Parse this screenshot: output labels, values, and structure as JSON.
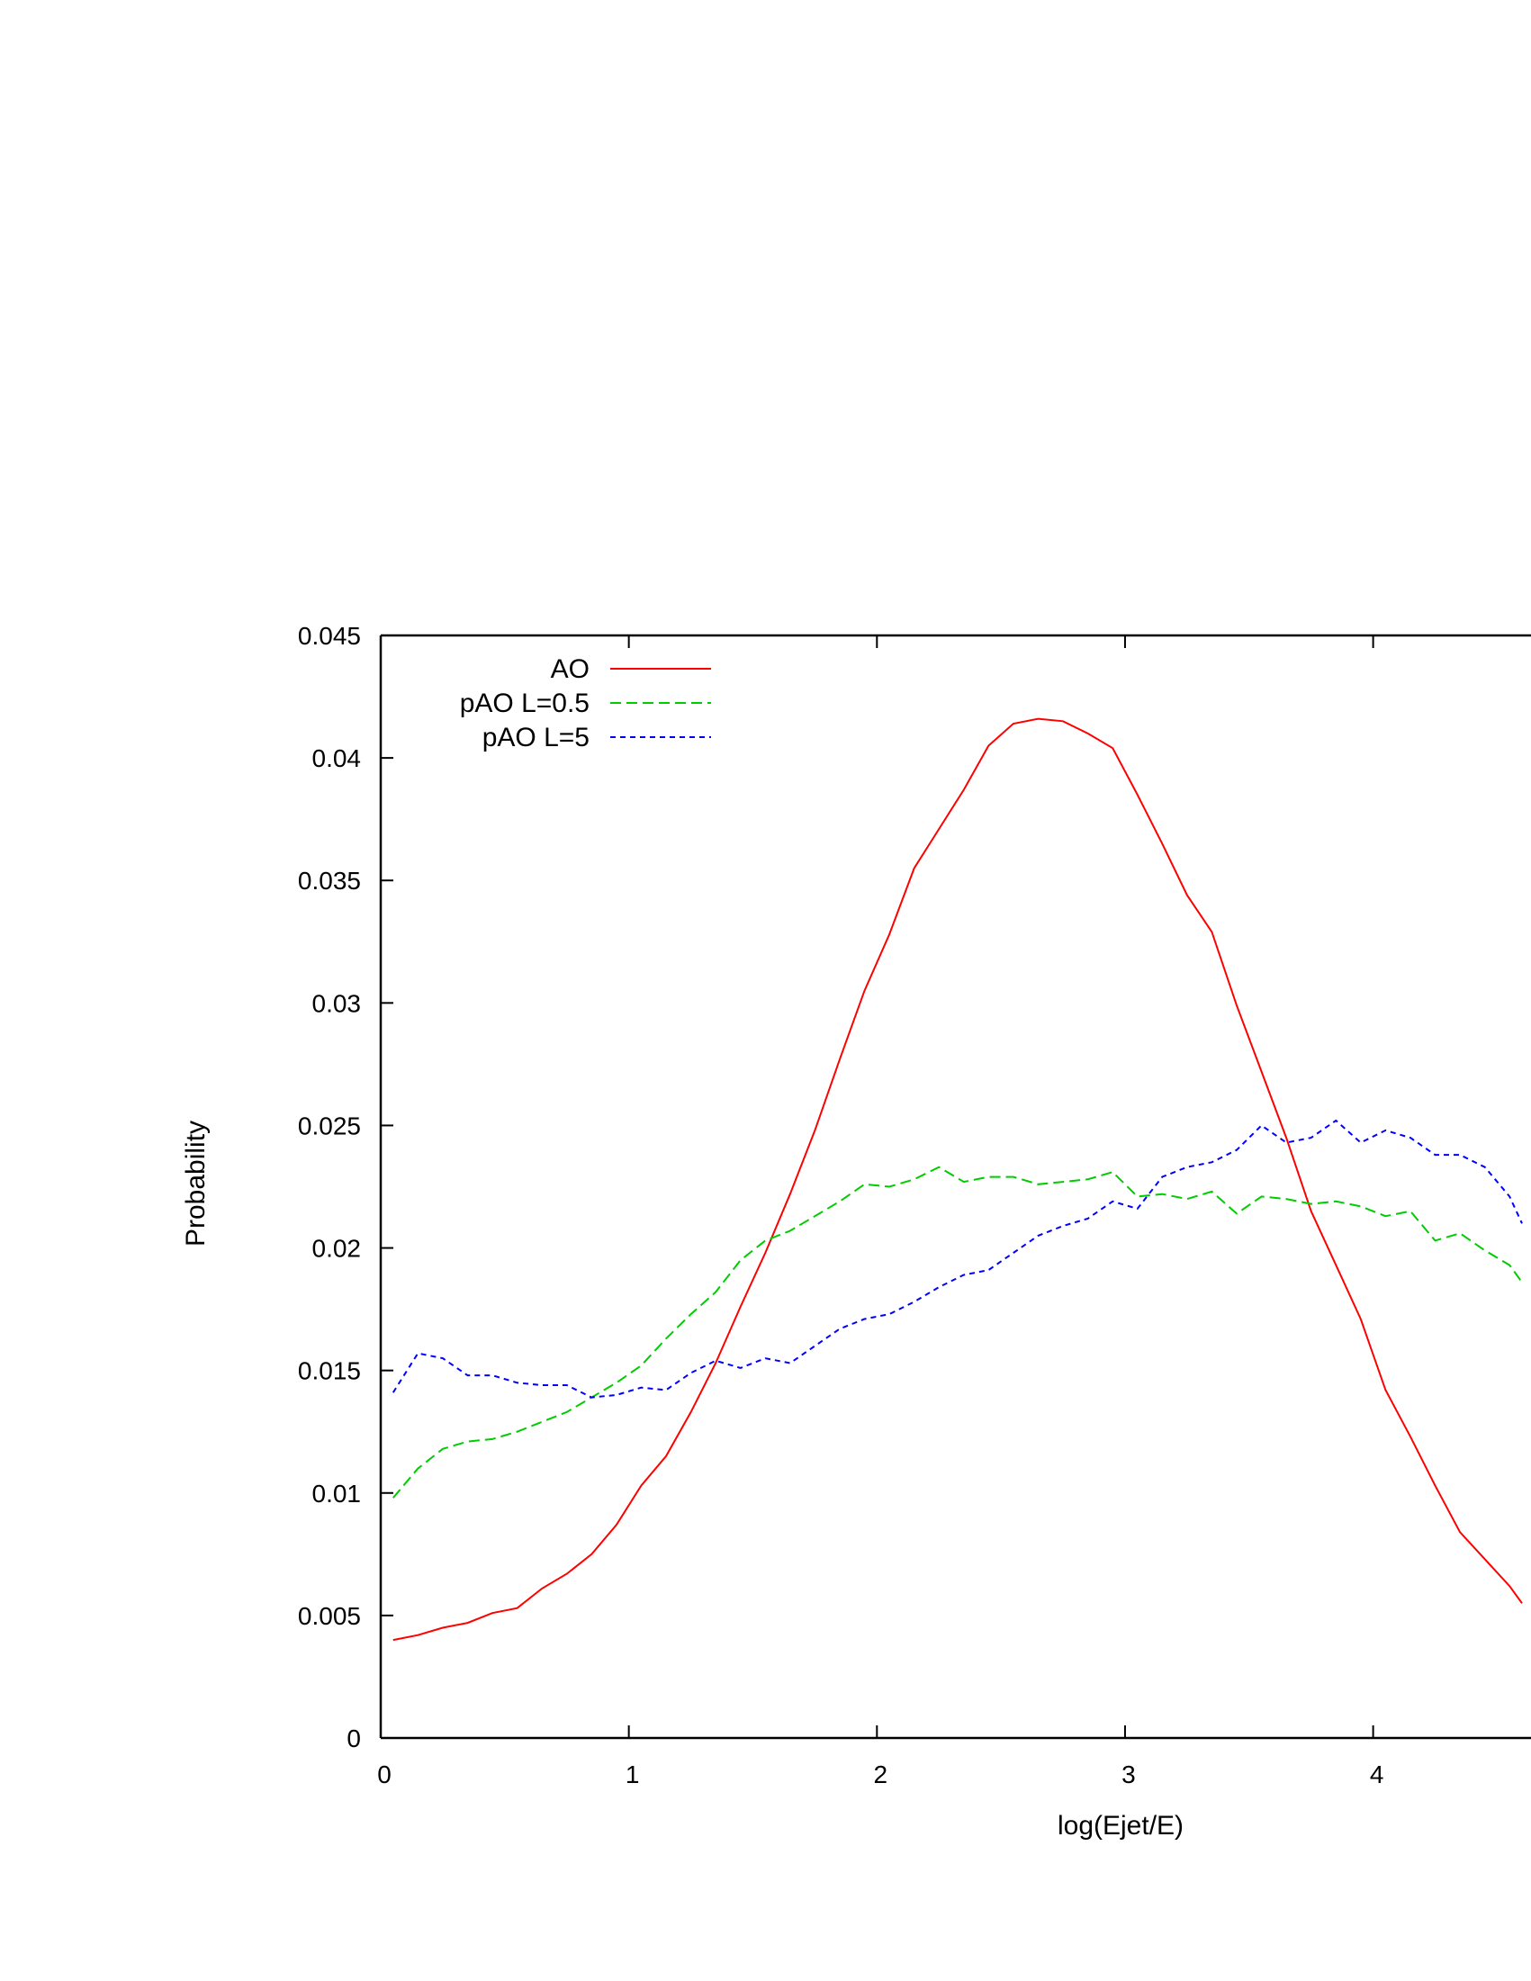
{
  "chart_data": {
    "type": "line",
    "title": "",
    "xlabel": "log(Ejet/E)",
    "ylabel": "Probability",
    "xlim": [
      0,
      4.6
    ],
    "ylim": [
      0,
      0.045
    ],
    "xticks": [
      0,
      1,
      2,
      3,
      4
    ],
    "xtick_labels": [
      "0",
      "1",
      "2",
      "3",
      "4"
    ],
    "yticks": [
      0,
      0.005,
      0.01,
      0.015,
      0.02,
      0.025,
      0.03,
      0.035,
      0.04,
      0.045
    ],
    "ytick_labels": [
      "0",
      "0.005",
      "0.01",
      "0.015",
      "0.02",
      "0.025",
      "0.03",
      "0.035",
      "0.04",
      "0.045"
    ],
    "grid": false,
    "legend_position": "top-left",
    "series": [
      {
        "name": "AO",
        "color": "#ff0000",
        "dash": "solid",
        "x": [
          0.05,
          0.15,
          0.25,
          0.35,
          0.45,
          0.55,
          0.65,
          0.75,
          0.85,
          0.95,
          1.05,
          1.15,
          1.25,
          1.35,
          1.45,
          1.55,
          1.65,
          1.75,
          1.85,
          1.95,
          2.05,
          2.15,
          2.25,
          2.35,
          2.45,
          2.55,
          2.65,
          2.75,
          2.85,
          2.95,
          3.05,
          3.15,
          3.25,
          3.35,
          3.45,
          3.55,
          3.65,
          3.75,
          3.85,
          3.95,
          4.05,
          4.15,
          4.25,
          4.35,
          4.45,
          4.55,
          4.6
        ],
        "y": [
          0.004,
          0.0042,
          0.0045,
          0.0047,
          0.0051,
          0.0053,
          0.0061,
          0.0067,
          0.0075,
          0.0087,
          0.0103,
          0.0115,
          0.0133,
          0.0153,
          0.0176,
          0.0198,
          0.0222,
          0.0248,
          0.0277,
          0.0305,
          0.0328,
          0.0355,
          0.0371,
          0.0387,
          0.0405,
          0.0414,
          0.0416,
          0.0415,
          0.041,
          0.0404,
          0.0385,
          0.0365,
          0.0344,
          0.0329,
          0.0299,
          0.0272,
          0.0245,
          0.0215,
          0.0193,
          0.0171,
          0.0142,
          0.0123,
          0.0103,
          0.0084,
          0.0073,
          0.0062,
          0.0055
        ]
      },
      {
        "name": "pAO L=0.5",
        "color": "#00cc00",
        "dash": "12,6",
        "x": [
          0.05,
          0.15,
          0.25,
          0.35,
          0.45,
          0.55,
          0.65,
          0.75,
          0.85,
          0.95,
          1.05,
          1.15,
          1.25,
          1.35,
          1.45,
          1.55,
          1.65,
          1.75,
          1.85,
          1.95,
          2.05,
          2.15,
          2.25,
          2.35,
          2.45,
          2.55,
          2.65,
          2.75,
          2.85,
          2.95,
          3.05,
          3.15,
          3.25,
          3.35,
          3.45,
          3.55,
          3.65,
          3.75,
          3.85,
          3.95,
          4.05,
          4.15,
          4.25,
          4.35,
          4.45,
          4.55,
          4.6
        ],
        "y": [
          0.0098,
          0.011,
          0.0118,
          0.0121,
          0.0122,
          0.0125,
          0.0129,
          0.0133,
          0.0139,
          0.0145,
          0.0152,
          0.0163,
          0.0173,
          0.0182,
          0.0195,
          0.0203,
          0.0207,
          0.0213,
          0.0219,
          0.0226,
          0.0225,
          0.0228,
          0.0233,
          0.0227,
          0.0229,
          0.0229,
          0.0226,
          0.0227,
          0.0228,
          0.0231,
          0.0221,
          0.0222,
          0.022,
          0.0223,
          0.0214,
          0.0221,
          0.022,
          0.0218,
          0.0219,
          0.0217,
          0.0213,
          0.0215,
          0.0203,
          0.0206,
          0.0199,
          0.0193,
          0.0186
        ]
      },
      {
        "name": "pAO L=5",
        "color": "#0000ff",
        "dash": "6,5",
        "x": [
          0.05,
          0.15,
          0.25,
          0.35,
          0.45,
          0.55,
          0.65,
          0.75,
          0.85,
          0.95,
          1.05,
          1.15,
          1.25,
          1.35,
          1.45,
          1.55,
          1.65,
          1.75,
          1.85,
          1.95,
          2.05,
          2.15,
          2.25,
          2.35,
          2.45,
          2.55,
          2.65,
          2.75,
          2.85,
          2.95,
          3.05,
          3.15,
          3.25,
          3.35,
          3.45,
          3.55,
          3.65,
          3.75,
          3.85,
          3.95,
          4.05,
          4.15,
          4.25,
          4.35,
          4.45,
          4.55,
          4.6
        ],
        "y": [
          0.0141,
          0.0157,
          0.0155,
          0.0148,
          0.0148,
          0.0145,
          0.0144,
          0.0144,
          0.0139,
          0.014,
          0.0143,
          0.0142,
          0.0149,
          0.0154,
          0.0151,
          0.0155,
          0.0153,
          0.016,
          0.0167,
          0.0171,
          0.0173,
          0.0178,
          0.0184,
          0.0189,
          0.0191,
          0.0198,
          0.0205,
          0.0209,
          0.0212,
          0.0219,
          0.0216,
          0.0229,
          0.0233,
          0.0235,
          0.024,
          0.025,
          0.0243,
          0.0245,
          0.0252,
          0.0243,
          0.0248,
          0.0245,
          0.0238,
          0.0238,
          0.0233,
          0.0221,
          0.021
        ]
      }
    ]
  }
}
